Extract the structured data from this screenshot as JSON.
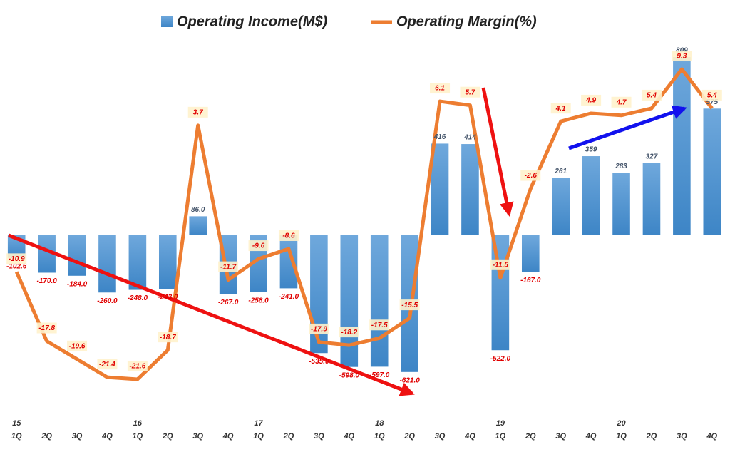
{
  "chart_data": {
    "type": "bar_line",
    "categories": [
      "1Q",
      "2Q",
      "3Q",
      "4Q",
      "1Q",
      "2Q",
      "3Q",
      "4Q",
      "1Q",
      "2Q",
      "3Q",
      "4Q",
      "1Q",
      "2Q",
      "3Q",
      "4Q",
      "1Q",
      "2Q",
      "3Q",
      "4Q",
      "1Q",
      "2Q",
      "3Q",
      "4Q"
    ],
    "year_labels": [
      "15",
      null,
      null,
      null,
      "16",
      null,
      null,
      null,
      "17",
      null,
      null,
      null,
      "18",
      null,
      null,
      null,
      "19",
      null,
      null,
      null,
      "20",
      null,
      null,
      null
    ],
    "series": [
      {
        "name": "Operating Income(M$)",
        "color": "#5b9bd5",
        "kind": "bar",
        "values": [
          -102.6,
          -170,
          -184,
          -260,
          -248,
          -243,
          86,
          -267,
          -258,
          -241,
          -535,
          -598,
          -597,
          -621,
          416,
          414,
          -522,
          -167,
          261,
          359,
          283,
          327,
          809,
          575
        ],
        "value_labels": [
          "-102.6",
          "-170.0",
          "-184.0",
          "-260.0",
          "-248.0",
          "-243.0",
          "86.0",
          "-267.0",
          "-258.0",
          "-241.0",
          "-535.0",
          "-598.0",
          "-597.0",
          "-621.0",
          "416",
          "414",
          "-522.0",
          "-167.0",
          "261",
          "359",
          "283",
          "327",
          "809",
          "575"
        ]
      },
      {
        "name": "Operating Margin(%)",
        "color": "#ed7d31",
        "kind": "line",
        "axis": "y2",
        "values": [
          -10.9,
          -17.8,
          -19.6,
          -21.4,
          -21.6,
          -18.7,
          3.7,
          -11.7,
          -9.6,
          -8.6,
          -17.9,
          -18.2,
          -17.5,
          -15.5,
          6.1,
          5.7,
          -11.5,
          -2.6,
          4.1,
          4.9,
          4.7,
          5.4,
          9.3,
          5.4
        ]
      }
    ],
    "ylim": [
      -900,
      1000
    ],
    "y2lim": [
      -27,
      14.7
    ]
  }
}
